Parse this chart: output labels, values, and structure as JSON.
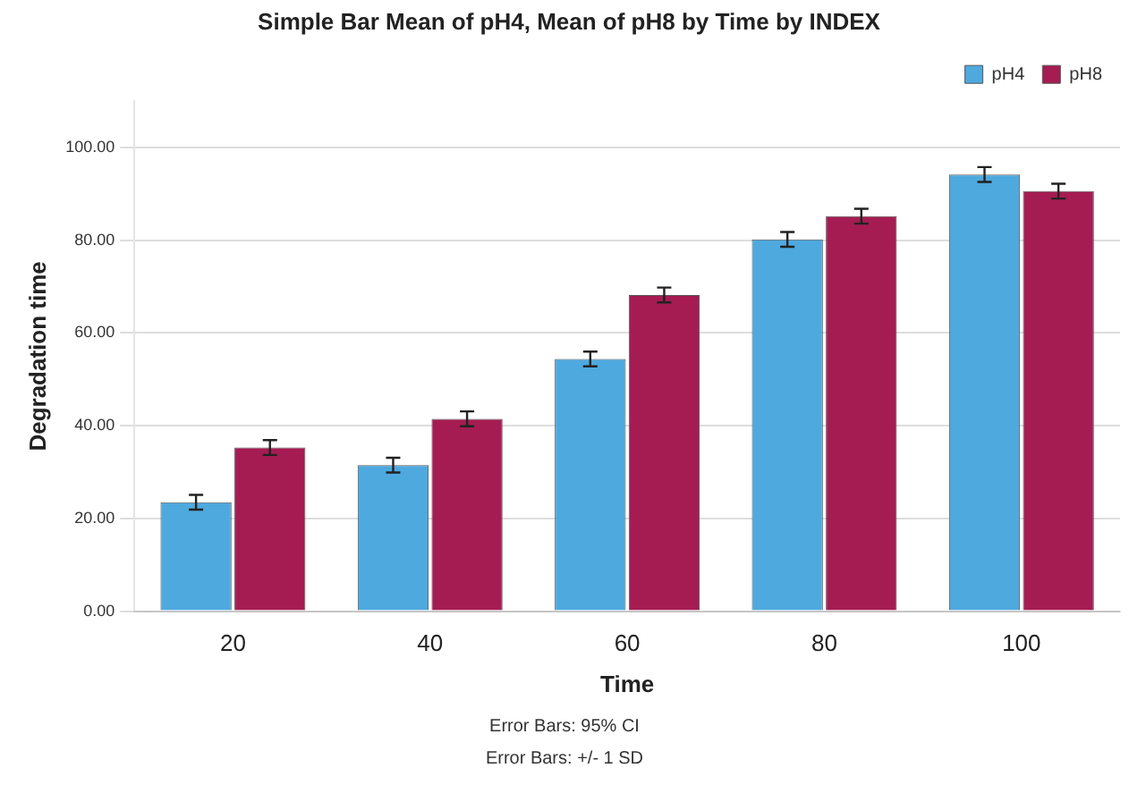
{
  "chart_data": {
    "type": "bar",
    "title": "Simple Bar Mean of pH4, Mean of pH8 by Time by INDEX",
    "xlabel": "Time",
    "ylabel": "Degradation time",
    "categories": [
      "20",
      "40",
      "60",
      "80",
      "100"
    ],
    "series": [
      {
        "name": "pH4",
        "color": "#4ea9de",
        "values": [
          23.5,
          31.5,
          54.4,
          80.2,
          94.2
        ],
        "errors": [
          1.6,
          1.6,
          1.6,
          1.6,
          1.6
        ]
      },
      {
        "name": "pH8",
        "color": "#a51c52",
        "values": [
          35.3,
          41.5,
          68.2,
          85.2,
          90.6
        ],
        "errors": [
          1.6,
          1.6,
          1.6,
          1.6,
          1.6
        ]
      }
    ],
    "ylim": [
      0,
      110
    ],
    "yticks": [
      {
        "value": 0,
        "label": "0.00"
      },
      {
        "value": 20,
        "label": "20.00"
      },
      {
        "value": 40,
        "label": "40.00"
      },
      {
        "value": 60,
        "label": "60.00"
      },
      {
        "value": 80,
        "label": "80.00"
      },
      {
        "value": 100,
        "label": "100.00"
      }
    ],
    "grid": "y",
    "legend": "top right",
    "annotations": [
      "Error Bars: 95% CI",
      "Error Bars: +/- 1 SD"
    ]
  }
}
